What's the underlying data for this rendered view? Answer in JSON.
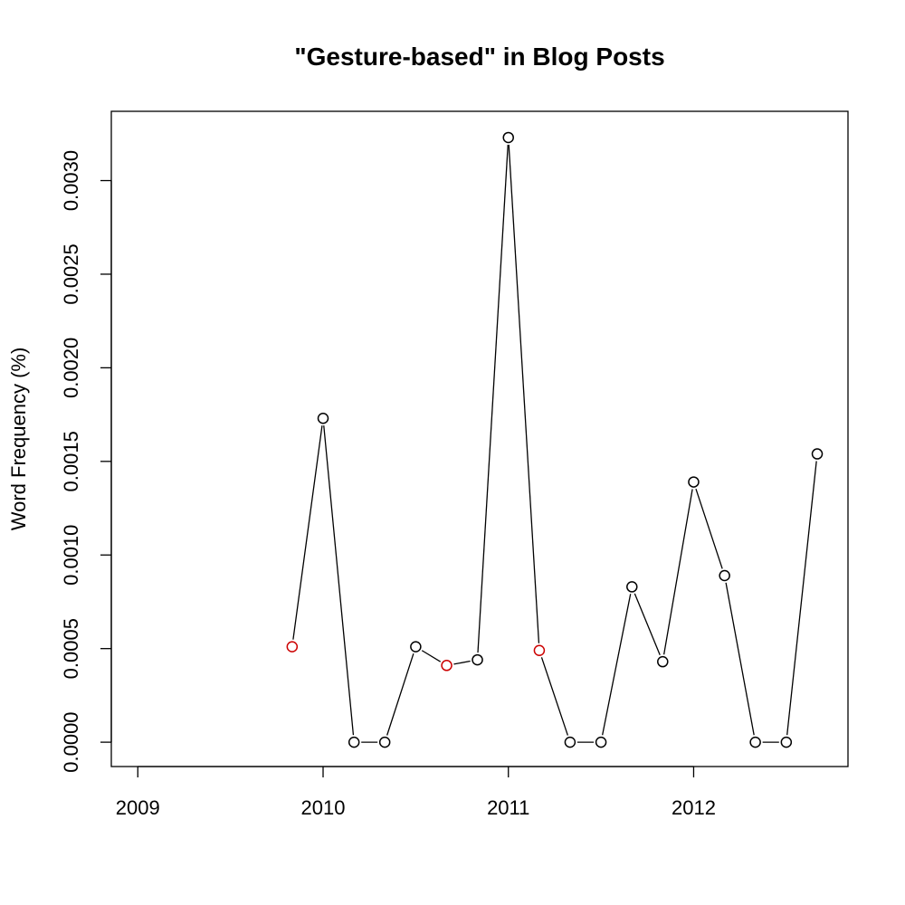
{
  "chart_data": {
    "type": "line",
    "title": "\"Gesture-based\" in Blog Posts",
    "xlabel": "",
    "ylabel": "Word Frequency (%)",
    "xlim": [
      2008.857,
      2012.833
    ],
    "ylim": [
      -0.00013,
      0.00337
    ],
    "x_ticks": [
      2009,
      2010,
      2011,
      2012
    ],
    "x_tick_labels": [
      "2009",
      "2010",
      "2011",
      "2012"
    ],
    "y_ticks": [
      0.0,
      0.0005,
      0.001,
      0.0015,
      0.002,
      0.0025,
      0.003
    ],
    "y_tick_labels": [
      "0.0000",
      "0.0005",
      "0.0010",
      "0.0015",
      "0.0020",
      "0.0025",
      "0.0030"
    ],
    "grid": false,
    "legend": "none",
    "colors": {
      "default_point": "#000000",
      "highlight_point": "#cc0000",
      "line": "#000000"
    },
    "series": [
      {
        "x": [
          2009.833,
          2010.0,
          2010.167,
          2010.333,
          2010.5,
          2010.667,
          2010.833,
          2011.0,
          2011.167,
          2011.333,
          2011.5,
          2011.667,
          2011.833,
          2012.0,
          2012.167,
          2012.333,
          2012.5,
          2012.667
        ],
        "values": [
          0.00051,
          0.00173,
          0.0,
          0.0,
          0.00051,
          0.00041,
          0.00044,
          0.00323,
          0.00049,
          0.0,
          0.0,
          0.00083,
          0.00043,
          0.00139,
          0.00089,
          0.0,
          0.0,
          0.00154
        ],
        "highlight": [
          true,
          false,
          false,
          false,
          false,
          true,
          false,
          false,
          true,
          false,
          false,
          false,
          false,
          false,
          false,
          false,
          false,
          false
        ]
      }
    ]
  }
}
